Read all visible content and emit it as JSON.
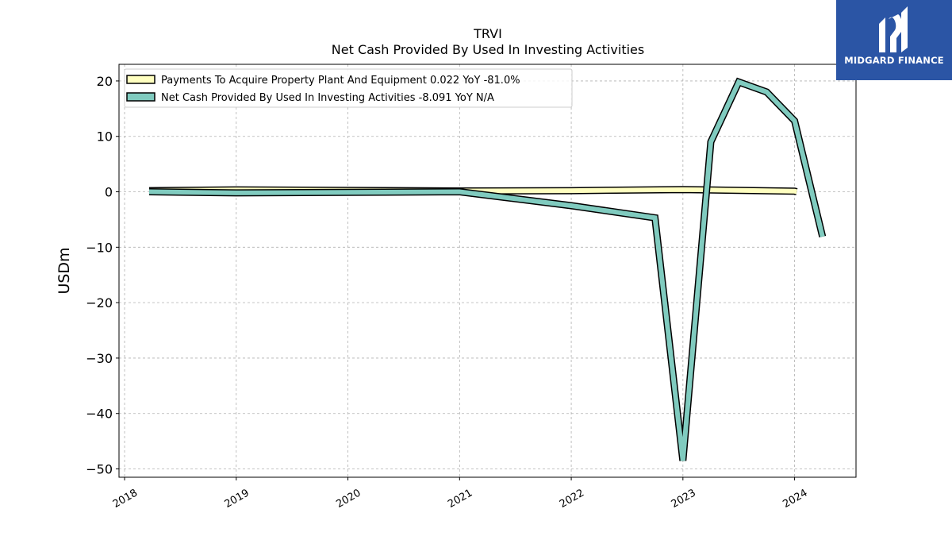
{
  "brand": {
    "name": "MIDGARD FINANCE",
    "color": "#2b55a5"
  },
  "chart_data": {
    "type": "line",
    "title": "TRVI",
    "subtitle": "Net Cash Provided By Used In Investing Activities",
    "xlabel": "",
    "ylabel": "USDm",
    "xlim": [
      2017.95,
      2024.55
    ],
    "ylim": [
      -51.5,
      23
    ],
    "x_ticks": [
      2018,
      2019,
      2020,
      2021,
      2022,
      2023,
      2024
    ],
    "x_tick_labels": [
      "2018",
      "2019",
      "2020",
      "2021",
      "2022",
      "2023",
      "2024"
    ],
    "y_ticks": [
      20,
      10,
      0,
      -10,
      -20,
      -30,
      -40,
      -50
    ],
    "y_tick_labels": [
      "20",
      "10",
      "0",
      "−10",
      "−20",
      "−30",
      "−40",
      "−50"
    ],
    "grid": true,
    "legend_position": "top-left",
    "series": [
      {
        "name": "Payments To Acquire Property Plant And Equipment",
        "legend_label": "Payments To Acquire Property Plant And Equipment  0.022 YoY -81.0%",
        "color": "#ffffc0",
        "x": [
          2018.22,
          2019.0,
          2021.0,
          2022.0,
          2023.0,
          2024.0,
          2024.02
        ],
        "y": [
          0.2,
          0.35,
          0.15,
          0.2,
          0.4,
          0.1,
          0.022
        ]
      },
      {
        "name": "Net Cash Provided By Used In Investing Activities",
        "legend_label": "Net Cash Provided By Used In Investing Activities  -8.091 YoY N/A",
        "color": "#80cbbf",
        "x": [
          2018.22,
          2019.0,
          2021.0,
          2022.0,
          2022.75,
          2023.0,
          2023.25,
          2023.5,
          2023.75,
          2024.0,
          2024.25
        ],
        "y": [
          0.0,
          -0.2,
          0.0,
          -2.5,
          -4.7,
          -48.5,
          9.0,
          19.8,
          18.0,
          12.8,
          -8.091
        ]
      }
    ]
  }
}
